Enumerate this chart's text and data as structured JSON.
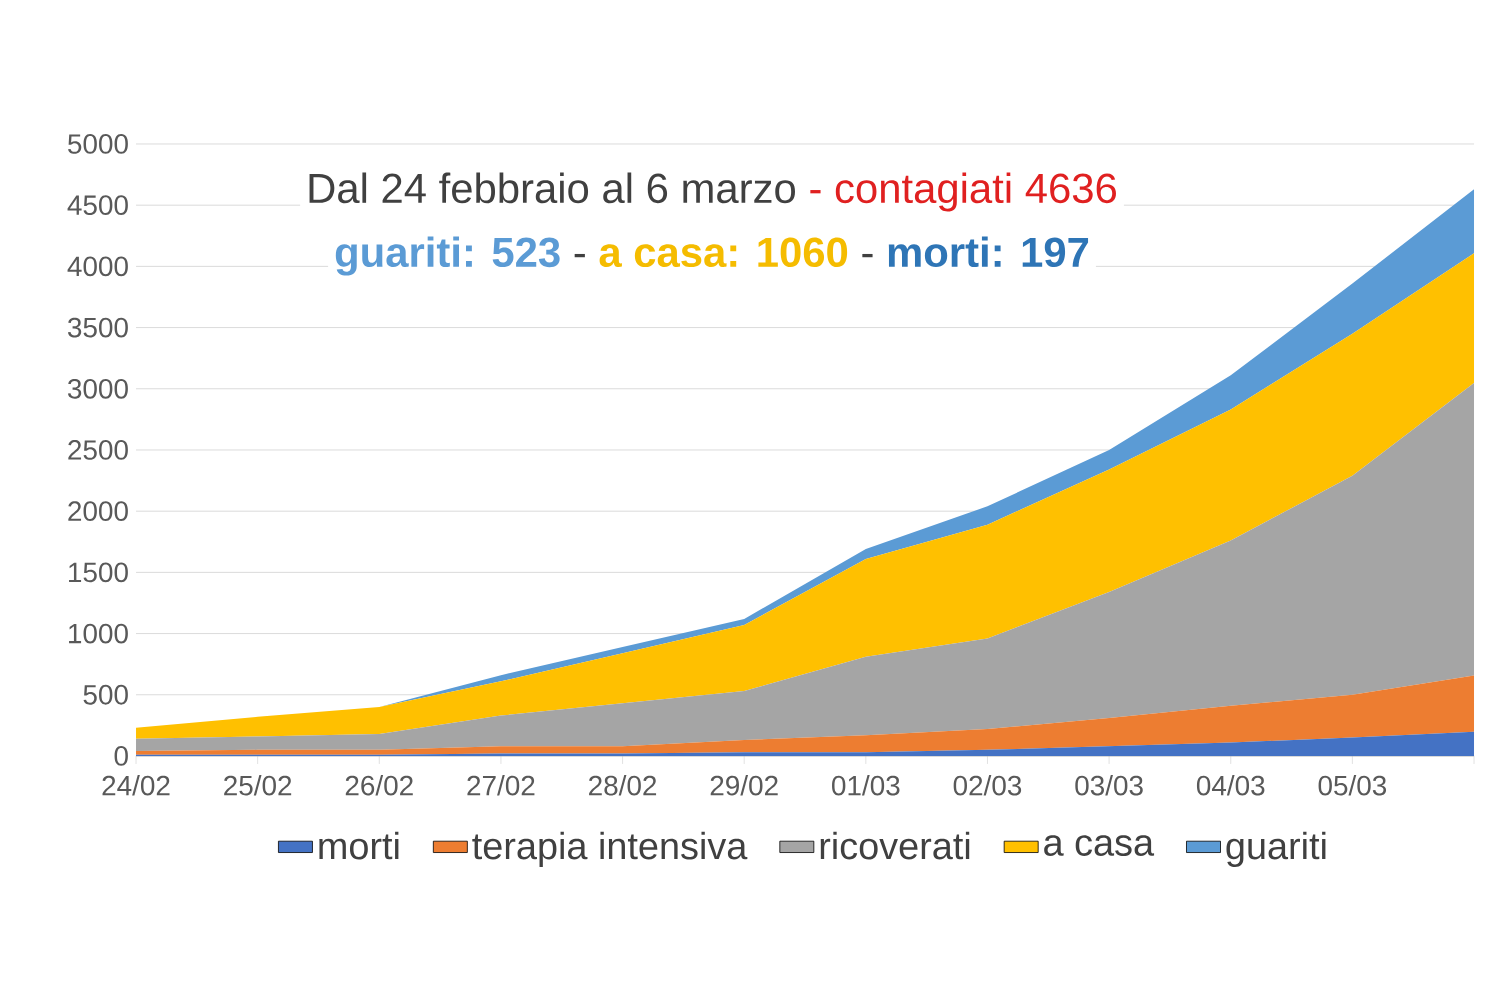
{
  "chart_data": {
    "type": "area",
    "stacked": true,
    "categories": [
      "24/02",
      "25/02",
      "26/02",
      "27/02",
      "28/02",
      "29/02",
      "01/03",
      "02/03",
      "03/03",
      "04/03",
      "05/03",
      null
    ],
    "series": [
      {
        "name": "morti",
        "color": "#4472c4",
        "values": [
          10,
          10,
          10,
          20,
          20,
          30,
          30,
          50,
          80,
          110,
          150,
          197
        ]
      },
      {
        "name": "terapia intensiva",
        "color": "#ed7d31",
        "values": [
          30,
          40,
          40,
          60,
          60,
          100,
          140,
          170,
          230,
          300,
          350,
          460
        ]
      },
      {
        "name": "ricoverati",
        "color": "#a5a5a5",
        "values": [
          100,
          110,
          130,
          250,
          350,
          400,
          640,
          740,
          1030,
          1350,
          1790,
          2390
        ]
      },
      {
        "name": "a casa",
        "color": "#ffc000",
        "values": [
          90,
          160,
          220,
          280,
          410,
          540,
          800,
          930,
          1000,
          1070,
          1160,
          1060
        ]
      },
      {
        "name": "guariti",
        "color": "#5b9bd5",
        "values": [
          0,
          0,
          0,
          50,
          50,
          50,
          80,
          150,
          160,
          280,
          410,
          523
        ]
      }
    ],
    "ylim": [
      0,
      5000
    ],
    "yticks": [
      0,
      500,
      1000,
      1500,
      2000,
      2500,
      3000,
      3500,
      4000,
      4500,
      5000
    ],
    "grid": "y",
    "legend": "bottom",
    "annotations": [
      "Dal 24 febbraio al 6 marzo",
      "- contagiati 4636",
      "guariti: 523",
      "-",
      "a casa: 1060",
      "-",
      "morti: 197"
    ]
  }
}
